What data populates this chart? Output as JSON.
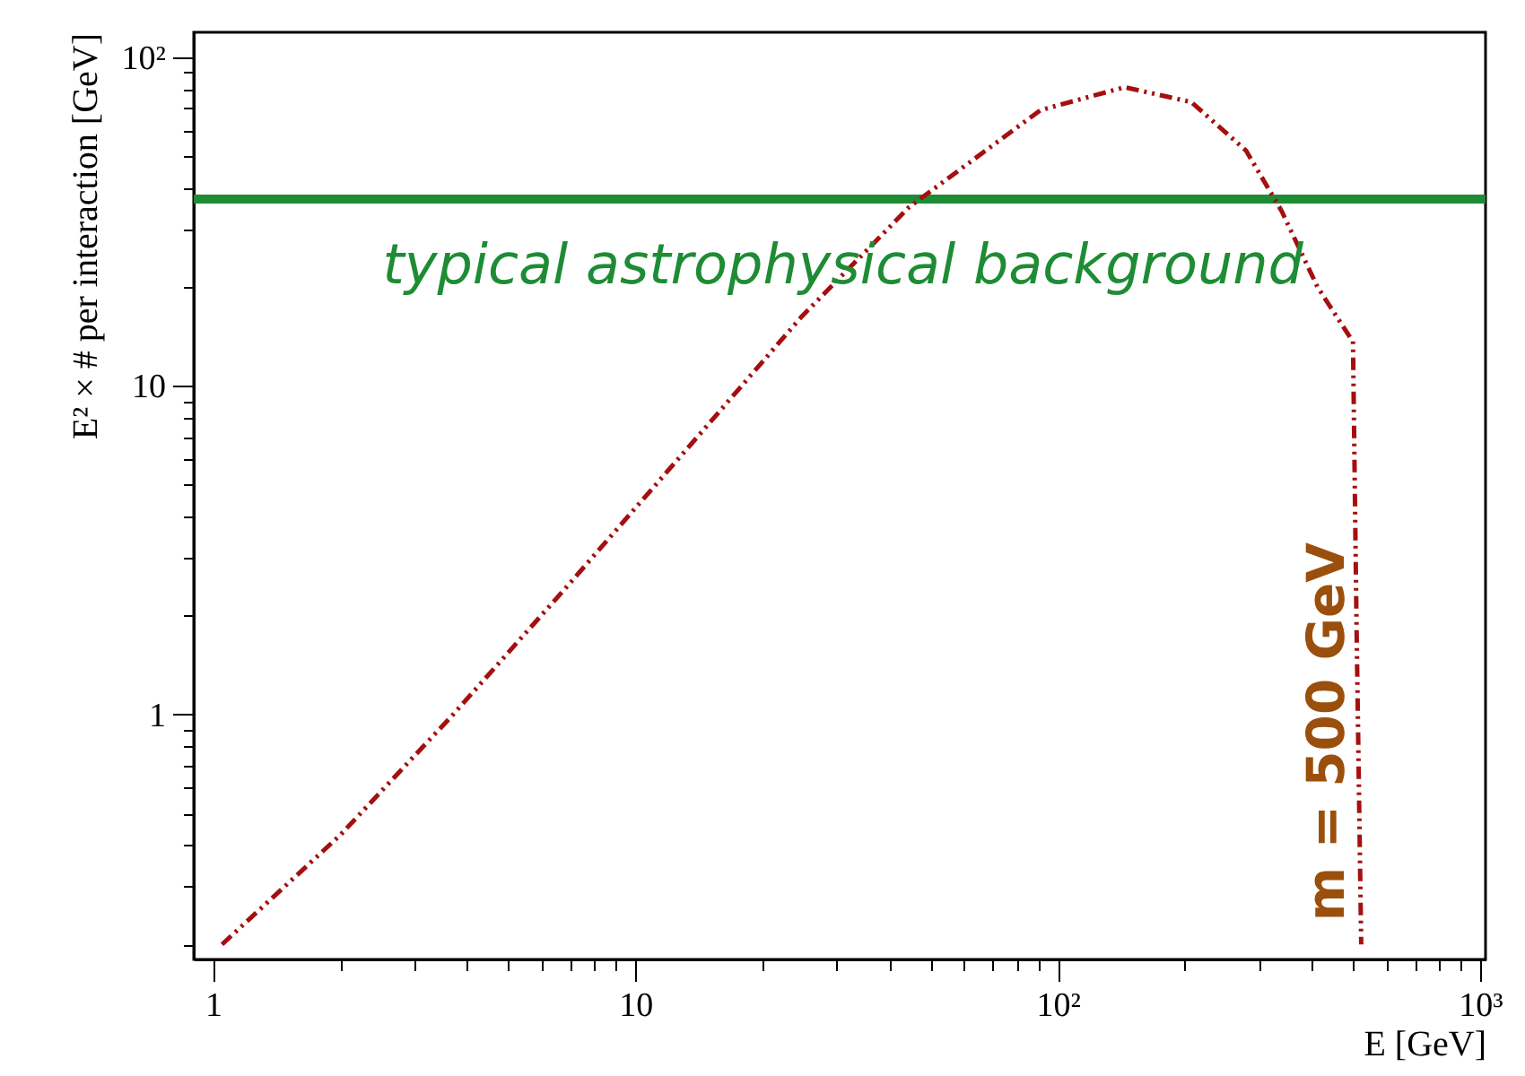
{
  "chart_data": {
    "type": "line",
    "xlabel": "E [GeV]",
    "ylabel": "E² × # per interaction [GeV]",
    "log": "xy",
    "grid": false,
    "xlim": [
      0.9,
      1030
    ],
    "ylim": [
      0.18,
      119
    ],
    "xticks": [
      1,
      {
        "value": 2,
        "label": null
      },
      {
        "value": 3,
        "label": null
      },
      {
        "value": 4,
        "label": null
      },
      {
        "value": 5,
        "label": null
      },
      {
        "value": 6,
        "label": null
      },
      {
        "value": 7,
        "label": null
      },
      {
        "value": 8,
        "label": null
      },
      {
        "value": 9,
        "label": null
      },
      10,
      {
        "value": 20,
        "label": null
      },
      {
        "value": 30,
        "label": null
      },
      {
        "value": 40,
        "label": null
      },
      {
        "value": 50,
        "label": null
      },
      {
        "value": 60,
        "label": null
      },
      {
        "value": 70,
        "label": null
      },
      {
        "value": 80,
        "label": null
      },
      {
        "value": 90,
        "label": null
      },
      {
        "value": 100,
        "label": "10²"
      },
      {
        "value": 200,
        "label": null
      },
      {
        "value": 300,
        "label": null
      },
      {
        "value": 400,
        "label": null
      },
      {
        "value": 500,
        "label": null
      },
      {
        "value": 600,
        "label": null
      },
      {
        "value": 700,
        "label": null
      },
      {
        "value": 800,
        "label": null
      },
      {
        "value": 900,
        "label": null
      },
      {
        "value": 1000,
        "label": "10³"
      }
    ],
    "yticks": [
      {
        "value": 0.2,
        "label": null
      },
      {
        "value": 0.3,
        "label": null
      },
      {
        "value": 0.4,
        "label": null
      },
      {
        "value": 0.5,
        "label": null
      },
      {
        "value": 0.6,
        "label": null
      },
      {
        "value": 0.7,
        "label": null
      },
      {
        "value": 0.8,
        "label": null
      },
      {
        "value": 0.9,
        "label": null
      },
      1,
      {
        "value": 2,
        "label": null
      },
      {
        "value": 3,
        "label": null
      },
      {
        "value": 4,
        "label": null
      },
      {
        "value": 5,
        "label": null
      },
      {
        "value": 6,
        "label": null
      },
      {
        "value": 7,
        "label": null
      },
      {
        "value": 8,
        "label": null
      },
      {
        "value": 9,
        "label": null
      },
      10,
      {
        "value": 20,
        "label": null
      },
      {
        "value": 30,
        "label": null
      },
      {
        "value": 40,
        "label": null
      },
      {
        "value": 50,
        "label": null
      },
      {
        "value": 60,
        "label": null
      },
      {
        "value": 70,
        "label": null
      },
      {
        "value": 80,
        "label": null
      },
      {
        "value": 90,
        "label": null
      },
      {
        "value": 100,
        "label": "10²"
      }
    ],
    "series": [
      {
        "color": "#1e8c35",
        "line_style": "solid",
        "x": [
          0.9,
          1030
        ],
        "values": [
          37,
          37
        ]
      },
      {
        "color": "#a50f0f",
        "line_style": "dashed",
        "x": [
          1.05,
          2,
          3.7,
          6.9,
          14.7,
          24.7,
          44.5,
          91,
          144,
          207,
          279,
          339,
          412,
          493,
          500,
          510,
          523
        ],
        "values": [
          0.2,
          0.43,
          1.0,
          2.46,
          7.5,
          16.2,
          35,
          69,
          81,
          73,
          52,
          34,
          20,
          14,
          13.7,
          1.8,
          0.2
        ]
      }
    ],
    "annotations": [
      {
        "text": "typical astrophysical background",
        "x": 31,
        "y": 23
      },
      "m = 500 GeV"
    ]
  }
}
